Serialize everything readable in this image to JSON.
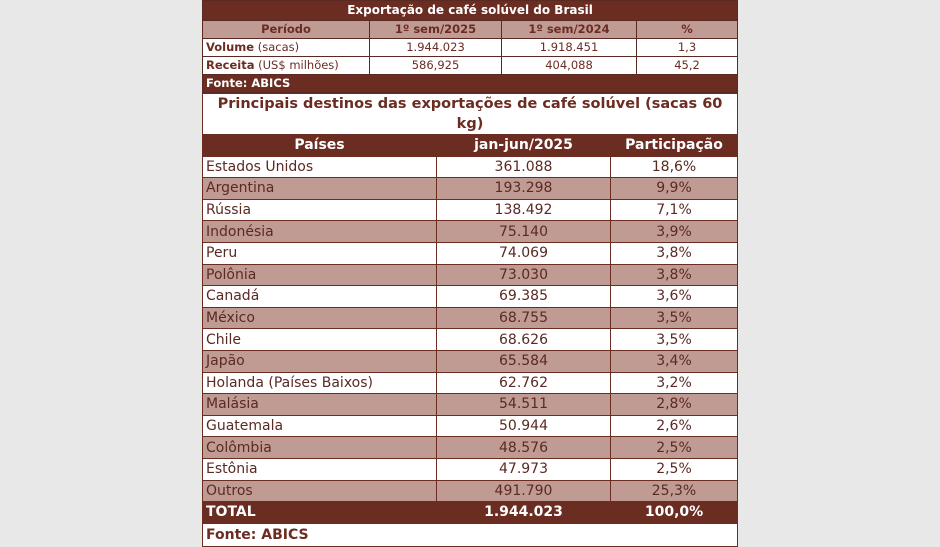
{
  "summary": {
    "title": "Exportação de café solúvel do Brasil",
    "headers": [
      "Período",
      "1º sem/2025",
      "1º sem/2024",
      "%"
    ],
    "rows": [
      {
        "label_bold": "Volume",
        "label_unit": " (sacas)",
        "values": [
          "1.944.023",
          "1.918.451",
          "1,3"
        ]
      },
      {
        "label_bold": "Receita",
        "label_unit": " (US$ milhões)",
        "values": [
          "586,925",
          "404,088",
          "45,2"
        ]
      }
    ],
    "source": "Fonte: ABICS"
  },
  "destinations": {
    "title": "Principais destinos das exportações de café solúvel (sacas 60 kg)",
    "headers": [
      "Países",
      "jan-jun/2025",
      "Participação"
    ],
    "rows": [
      [
        "Estados Unidos",
        "361.088",
        "18,6%"
      ],
      [
        "Argentina",
        "193.298",
        "9,9%"
      ],
      [
        "Rússia",
        "138.492",
        "7,1%"
      ],
      [
        "Indonésia",
        "75.140",
        "3,9%"
      ],
      [
        "Peru",
        "74.069",
        "3,8%"
      ],
      [
        "Polônia",
        "73.030",
        "3,8%"
      ],
      [
        "Canadá",
        "69.385",
        "3,6%"
      ],
      [
        "México",
        "68.755",
        "3,5%"
      ],
      [
        "Chile",
        "68.626",
        "3,5%"
      ],
      [
        "Japão",
        "65.584",
        "3,4%"
      ],
      [
        "Holanda (Países Baixos)",
        "62.762",
        "3,2%"
      ],
      [
        "Malásia",
        "54.511",
        "2,8%"
      ],
      [
        "Guatemala",
        "50.944",
        "2,6%"
      ],
      [
        "Colômbia",
        "48.576",
        "2,5%"
      ],
      [
        "Estônia",
        "47.973",
        "2,5%"
      ],
      [
        "Outros",
        "491.790",
        "25,3%"
      ]
    ],
    "total": [
      "TOTAL",
      "1.944.023",
      "100,0%"
    ],
    "source": "Fonte: ABICS"
  },
  "colors": {
    "dark_brown": "#6b2c22",
    "light_brown": "#c09b93",
    "background": "#e8e8e8"
  }
}
